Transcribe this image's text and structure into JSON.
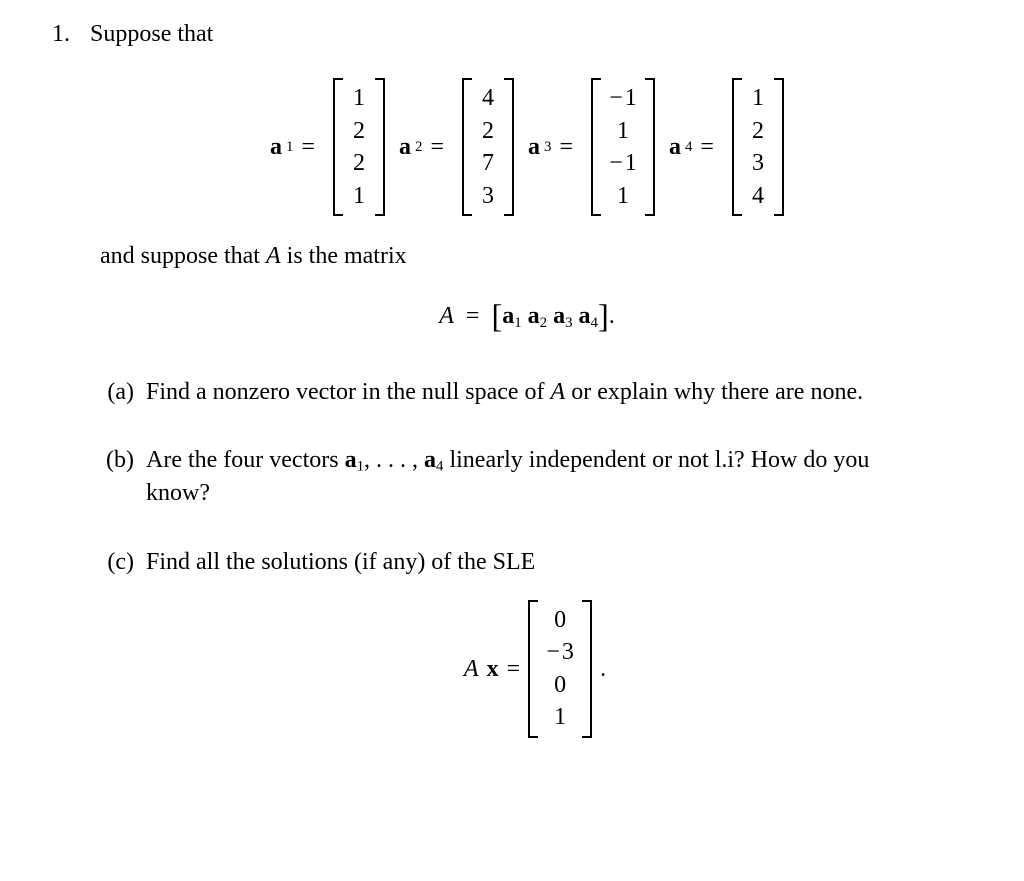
{
  "problem_number": "1.",
  "intro": "Suppose that",
  "vectors": {
    "a1": {
      "label": "a",
      "sub": "1",
      "entries": [
        "1",
        "2",
        "2",
        "1"
      ]
    },
    "a2": {
      "label": "a",
      "sub": "2",
      "entries": [
        "4",
        "2",
        "7",
        "3"
      ]
    },
    "a3": {
      "label": "a",
      "sub": "3",
      "entries": [
        "− 1",
        "1",
        "− 1",
        "1"
      ]
    },
    "a4": {
      "label": "a",
      "sub": "4",
      "entries": [
        "1",
        "2",
        "3",
        "4"
      ]
    }
  },
  "eq_sign": "=",
  "line2_pre": "and suppose that ",
  "line2_A": "A",
  "line2_post": " is the matrix",
  "matrixA": {
    "lhs": "A",
    "eq": "=",
    "open": "[",
    "parts": [
      {
        "b": "a",
        "s": "1"
      },
      {
        "b": "a",
        "s": "2"
      },
      {
        "b": "a",
        "s": "3"
      },
      {
        "b": "a",
        "s": "4"
      }
    ],
    "close": "]",
    "dot": "."
  },
  "parts": {
    "a": {
      "marker": "(a)",
      "t1": "Find a nonzero vector in the null space of ",
      "A": "A",
      "t2": " or explain why there are none."
    },
    "b": {
      "marker": "(b)",
      "t1": "Are the four vectors ",
      "b1": "a",
      "s1": "1",
      "mid": ", . . . , ",
      "b4": "a",
      "s4": "4",
      "t2": " linearly independent or not l.i? How do you know?"
    },
    "c": {
      "marker": "(c)",
      "t1": "Find all the solutions (if any) of the SLE",
      "lhs_A": "A",
      "lhs_x": "x",
      "eq": "=",
      "rhs": [
        "0",
        "− 3",
        "0",
        "1"
      ],
      "dot": "."
    }
  }
}
